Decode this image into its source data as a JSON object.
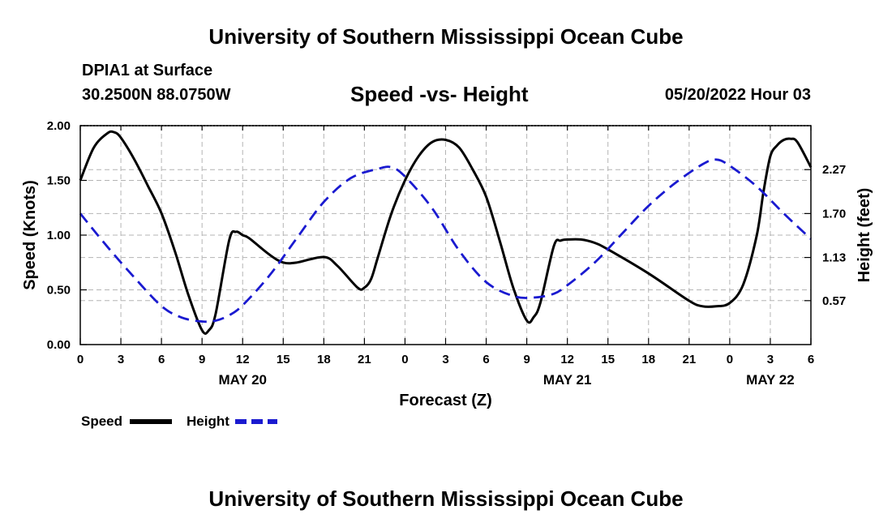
{
  "header": {
    "title_top": "University of Southern Mississippi Ocean Cube",
    "station": "DPIA1 at Surface",
    "coordinates": "30.2500N  88.0750W",
    "chart_title": "Speed -vs- Height",
    "timestamp": "05/20/2022 Hour 03",
    "title_bottom": "University of Southern Mississippi Ocean Cube"
  },
  "colors": {
    "speed": "#000000",
    "height": "#1a1ad0",
    "grid": "#b4b4b4"
  },
  "chart_data": {
    "type": "line",
    "title": "Speed -vs- Height",
    "xlabel": "Forecast (Z)",
    "ylabel_left": "Speed (Knots)",
    "ylabel_right": "Height (feet)",
    "x_range_hours": [
      0,
      54
    ],
    "x_ticks": [
      {
        "h": 0,
        "label": "0"
      },
      {
        "h": 3,
        "label": "3"
      },
      {
        "h": 6,
        "label": "6"
      },
      {
        "h": 9,
        "label": "9"
      },
      {
        "h": 12,
        "label": "12"
      },
      {
        "h": 15,
        "label": "15"
      },
      {
        "h": 18,
        "label": "18"
      },
      {
        "h": 21,
        "label": "21"
      },
      {
        "h": 24,
        "label": "0"
      },
      {
        "h": 27,
        "label": "3"
      },
      {
        "h": 30,
        "label": "6"
      },
      {
        "h": 33,
        "label": "9"
      },
      {
        "h": 36,
        "label": "12"
      },
      {
        "h": 39,
        "label": "15"
      },
      {
        "h": 42,
        "label": "18"
      },
      {
        "h": 45,
        "label": "21"
      },
      {
        "h": 48,
        "label": "0"
      },
      {
        "h": 51,
        "label": "3"
      },
      {
        "h": 54,
        "label": "6"
      }
    ],
    "date_labels": [
      {
        "h": 12,
        "label": "MAY 20"
      },
      {
        "h": 36,
        "label": "MAY 21"
      },
      {
        "h": 51,
        "label": "MAY 22"
      }
    ],
    "y_left": {
      "range": [
        0,
        2
      ],
      "ticks": [
        "0.00",
        "0.50",
        "1.00",
        "1.50",
        "2.00"
      ]
    },
    "y_right": {
      "range": [
        0,
        2.84
      ],
      "ticks": [
        "0.57",
        "1.13",
        "1.70",
        "2.27"
      ]
    },
    "legend": {
      "position": "bottom-left",
      "speed_label": "Speed",
      "height_label": "Height"
    },
    "series": [
      {
        "name": "Speed",
        "axis": "left",
        "style": "solid",
        "x": [
          0,
          1,
          2,
          2.5,
          3,
          4,
          5,
          6,
          7,
          8,
          9,
          9.5,
          10,
          11,
          11.5,
          12,
          12.5,
          14,
          15,
          16,
          18,
          19,
          20.5,
          21,
          21.5,
          22,
          23,
          24,
          25,
          26,
          27,
          28,
          29,
          30,
          31,
          32,
          33,
          33.5,
          34,
          35,
          35.5,
          36,
          37,
          38,
          39,
          42,
          45,
          46,
          47,
          48,
          49,
          50,
          50.5,
          51,
          51.5,
          52,
          52.5,
          53,
          54
        ],
        "y": [
          1.5,
          1.8,
          1.93,
          1.94,
          1.89,
          1.69,
          1.45,
          1.2,
          0.85,
          0.45,
          0.13,
          0.13,
          0.28,
          0.95,
          1.03,
          1.0,
          0.97,
          0.82,
          0.75,
          0.75,
          0.8,
          0.72,
          0.52,
          0.52,
          0.6,
          0.8,
          1.2,
          1.5,
          1.72,
          1.85,
          1.87,
          1.8,
          1.6,
          1.35,
          0.95,
          0.52,
          0.22,
          0.25,
          0.38,
          0.9,
          0.95,
          0.96,
          0.96,
          0.93,
          0.87,
          0.65,
          0.4,
          0.35,
          0.35,
          0.38,
          0.55,
          1.0,
          1.4,
          1.72,
          1.82,
          1.87,
          1.88,
          1.85,
          1.62
        ]
      },
      {
        "name": "Height",
        "axis": "right",
        "style": "dashed",
        "x": [
          0,
          2,
          4,
          6,
          7.5,
          9,
          10,
          11,
          12,
          14,
          16,
          18,
          20,
          22,
          23,
          24,
          26,
          28,
          30,
          32,
          33.5,
          35,
          36,
          38,
          40,
          42,
          44,
          46,
          47,
          48,
          50,
          52,
          54
        ],
        "y": [
          1.7,
          1.27,
          0.87,
          0.5,
          0.35,
          0.3,
          0.31,
          0.38,
          0.51,
          0.9,
          1.38,
          1.85,
          2.16,
          2.28,
          2.3,
          2.18,
          1.77,
          1.22,
          0.81,
          0.63,
          0.61,
          0.66,
          0.77,
          1.06,
          1.43,
          1.8,
          2.1,
          2.34,
          2.4,
          2.32,
          2.05,
          1.7,
          1.37
        ]
      }
    ]
  }
}
